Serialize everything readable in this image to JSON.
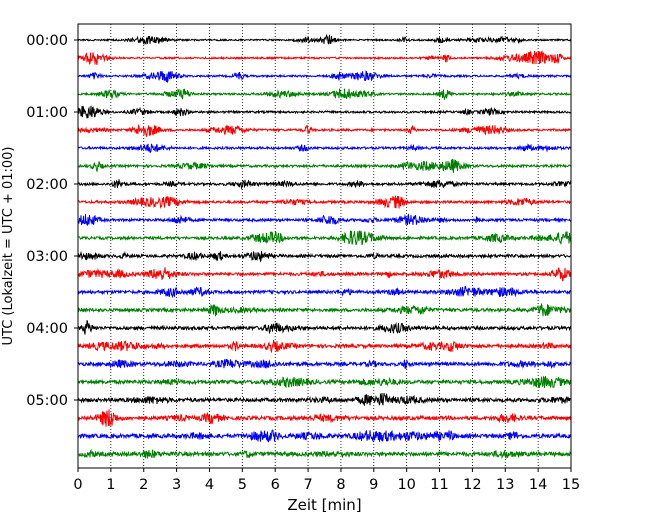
{
  "chart_data": {
    "type": "line",
    "title": "",
    "xlabel": "Zeit  [min]",
    "ylabel": "UTC (Lokalzeit = UTC + 01:00)",
    "xlim": [
      0,
      15
    ],
    "xticks": [
      "0",
      "1",
      "2",
      "3",
      "4",
      "5",
      "6",
      "7",
      "8",
      "9",
      "10",
      "11",
      "12",
      "13",
      "14",
      "15"
    ],
    "grid": "vertical dotted at each minute",
    "trace_interval_min": 15,
    "trace_count": 24,
    "color_cycle": [
      "#000000",
      "#ff0000",
      "#0000ff",
      "#008000"
    ],
    "yticks": [
      {
        "label": "00:00",
        "trace_index": 0
      },
      {
        "label": "01:00",
        "trace_index": 4
      },
      {
        "label": "02:00",
        "trace_index": 8
      },
      {
        "label": "03:00",
        "trace_index": 12
      },
      {
        "label": "04:00",
        "trace_index": 16
      },
      {
        "label": "05:00",
        "trace_index": 20
      }
    ],
    "series": [
      {
        "start": "00:00",
        "color": "#000000"
      },
      {
        "start": "00:15",
        "color": "#ff0000"
      },
      {
        "start": "00:30",
        "color": "#0000ff"
      },
      {
        "start": "00:45",
        "color": "#008000"
      },
      {
        "start": "01:00",
        "color": "#000000"
      },
      {
        "start": "01:15",
        "color": "#ff0000"
      },
      {
        "start": "01:30",
        "color": "#0000ff"
      },
      {
        "start": "01:45",
        "color": "#008000"
      },
      {
        "start": "02:00",
        "color": "#000000"
      },
      {
        "start": "02:15",
        "color": "#ff0000"
      },
      {
        "start": "02:30",
        "color": "#0000ff"
      },
      {
        "start": "02:45",
        "color": "#008000"
      },
      {
        "start": "03:00",
        "color": "#000000"
      },
      {
        "start": "03:15",
        "color": "#ff0000"
      },
      {
        "start": "03:30",
        "color": "#0000ff"
      },
      {
        "start": "03:45",
        "color": "#008000"
      },
      {
        "start": "04:00",
        "color": "#000000"
      },
      {
        "start": "04:15",
        "color": "#ff0000"
      },
      {
        "start": "04:30",
        "color": "#0000ff"
      },
      {
        "start": "04:45",
        "color": "#008000"
      },
      {
        "start": "05:00",
        "color": "#000000"
      },
      {
        "start": "05:15",
        "color": "#ff0000"
      },
      {
        "start": "05:30",
        "color": "#0000ff"
      },
      {
        "start": "05:45",
        "color": "#008000"
      }
    ]
  }
}
